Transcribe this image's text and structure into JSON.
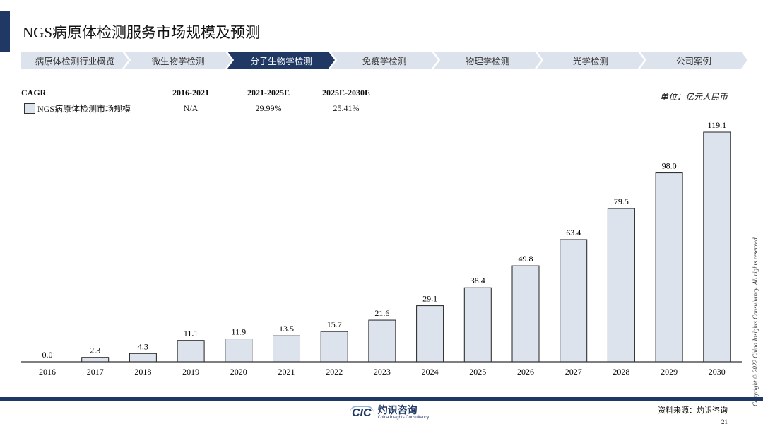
{
  "header": {
    "title": "NGS病原体检测服务市场规模及预测"
  },
  "nav": {
    "items": [
      "病原体检测行业概览",
      "微生物学检测",
      "分子生物学检测",
      "免疫学检测",
      "物理学检测",
      "光学检测",
      "公司案例"
    ],
    "active": 2
  },
  "cagr": {
    "header": [
      "CAGR",
      "2016-2021",
      "2021-2025E",
      "2025E-2030E"
    ],
    "row": [
      "NGS病原体检测市场规模",
      "N/A",
      "29.99%",
      "25.41%"
    ]
  },
  "unit": "单位：亿元人民币",
  "chart_data": {
    "type": "bar",
    "categories": [
      "2016",
      "2017",
      "2018",
      "2019",
      "2020",
      "2021",
      "2022",
      "2023",
      "2024",
      "2025",
      "2026",
      "2027",
      "2028",
      "2029",
      "2030"
    ],
    "series": [
      {
        "name": "NGS病原体检测市场规模",
        "values": [
          0.0,
          2.3,
          4.3,
          11.1,
          11.9,
          13.5,
          15.7,
          21.6,
          29.1,
          38.4,
          49.8,
          63.4,
          79.5,
          98.0,
          119.1
        ]
      }
    ],
    "ylim": [
      0,
      120
    ],
    "grid": false,
    "bar_color": "#dde3ec",
    "data_labels": true
  },
  "footer": {
    "copyright": "Copyright © 2022 China Insights Consultancy. All rights reserved.",
    "logo_cic": "CIC",
    "logo_cn": "灼识咨询",
    "logo_en": "China Insights Consultancy",
    "source": "资料来源：灼识咨询",
    "page": "21"
  },
  "colors": {
    "accent": "#1f3864",
    "bar": "#dde3ec"
  }
}
